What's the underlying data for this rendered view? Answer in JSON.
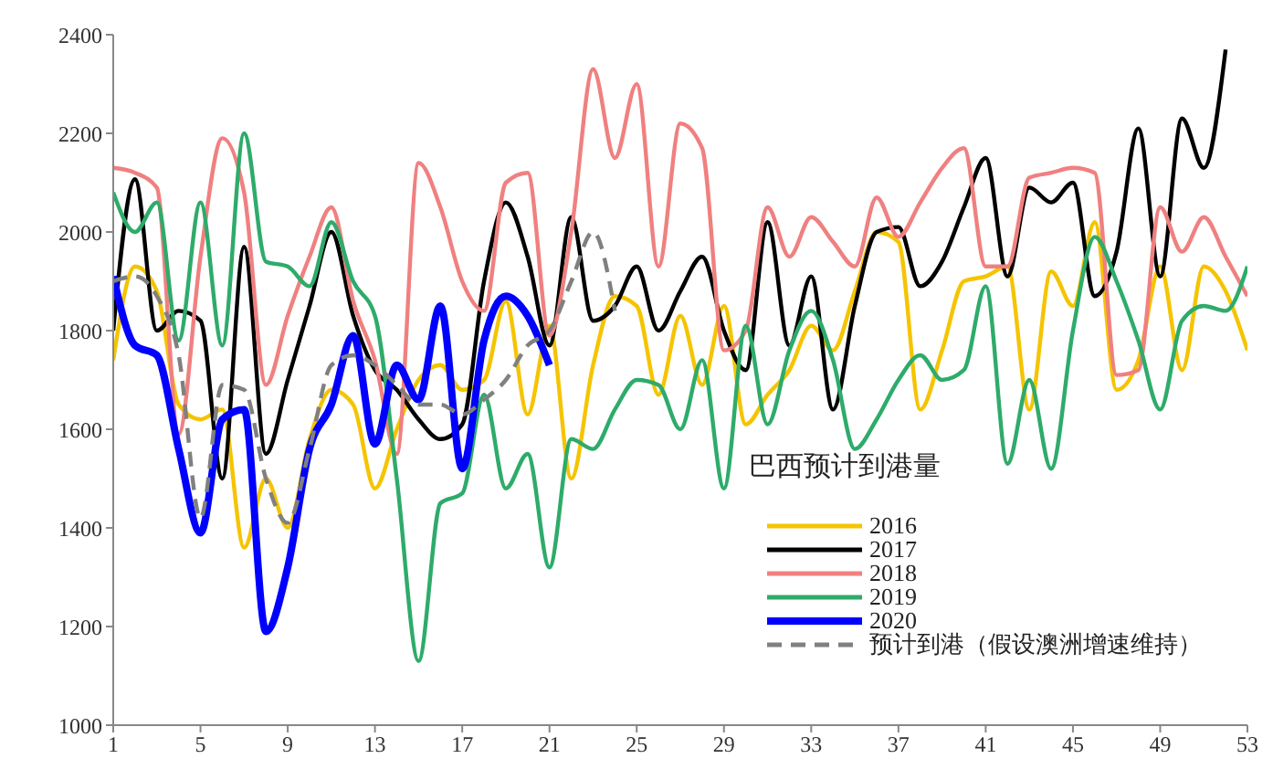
{
  "chart_data": {
    "type": "line",
    "legend_title": "巴西预计到港量",
    "x": [
      1,
      2,
      3,
      4,
      5,
      6,
      7,
      8,
      9,
      10,
      11,
      12,
      13,
      14,
      15,
      16,
      17,
      18,
      19,
      20,
      21,
      22,
      23,
      24,
      25,
      26,
      27,
      28,
      29,
      30,
      31,
      32,
      33,
      34,
      35,
      36,
      37,
      38,
      39,
      40,
      41,
      42,
      43,
      44,
      45,
      46,
      47,
      48,
      49,
      50,
      51,
      52,
      53
    ],
    "xlim": [
      1,
      53
    ],
    "xticks": [
      1,
      5,
      9,
      13,
      17,
      21,
      25,
      29,
      33,
      37,
      41,
      45,
      49,
      53
    ],
    "ylim": [
      1000,
      2400
    ],
    "yticks": [
      1000,
      1200,
      1400,
      1600,
      1800,
      2000,
      2200,
      2400
    ],
    "grid": false,
    "legend": "bottom right",
    "marker": "none",
    "line_style": "solid",
    "series": [
      {
        "name": "2016",
        "color": "#f5c400",
        "values": [
          1740,
          1930,
          1880,
          1650,
          1620,
          1640,
          1360,
          1500,
          1400,
          1580,
          1680,
          1650,
          1480,
          1600,
          1700,
          1730,
          1680,
          1700,
          1860,
          1630,
          1810,
          1500,
          1730,
          1870,
          1850,
          1670,
          1830,
          1690,
          1850,
          1610,
          1670,
          1720,
          1810,
          1760,
          1880,
          2000,
          1980,
          1640,
          1760,
          1900,
          1910,
          1930,
          1640,
          1920,
          1850,
          2020,
          1680,
          1740,
          1930,
          1720,
          1930,
          1880,
          1760
        ]
      },
      {
        "name": "2017",
        "color": "#000000",
        "values": [
          1800,
          2107,
          1800,
          1840,
          1820,
          1500,
          1970,
          1550,
          1700,
          1850,
          2000,
          1830,
          1720,
          1680,
          1620,
          1580,
          1610,
          1900,
          2060,
          1950,
          1770,
          2030,
          1820,
          1850,
          1930,
          1800,
          1880,
          1950,
          1800,
          1720,
          2020,
          1770,
          1910,
          1640,
          1850,
          2000,
          2010,
          1890,
          1940,
          2050,
          2150,
          1910,
          2090,
          2060,
          2100,
          1870,
          1960,
          2210,
          1910,
          2230,
          2130,
          2370,
          null
        ]
      },
      {
        "name": "2018",
        "color": "#f08080",
        "values": [
          2130,
          2120,
          2090,
          1590,
          1950,
          2190,
          2080,
          1690,
          1830,
          1950,
          2050,
          1860,
          1740,
          1550,
          2140,
          2050,
          1900,
          1840,
          2100,
          2120,
          1790,
          2000,
          2330,
          2150,
          2300,
          1930,
          2220,
          2170,
          1760,
          1800,
          2050,
          1950,
          2030,
          1980,
          1930,
          2070,
          1990,
          2060,
          2130,
          2170,
          1930,
          1930,
          2110,
          2120,
          2130,
          2120,
          1710,
          1720,
          2050,
          1960,
          2030,
          1950,
          1870
        ]
      },
      {
        "name": "2019",
        "color": "#2eab6a",
        "values": [
          2080,
          2000,
          2060,
          1780,
          2060,
          1770,
          2200,
          1940,
          1930,
          1890,
          2020,
          1900,
          1830,
          1500,
          1130,
          1450,
          1470,
          1670,
          1480,
          1550,
          1320,
          1580,
          1560,
          1640,
          1700,
          1690,
          1600,
          1740,
          1480,
          1810,
          1610,
          1760,
          1840,
          1740,
          1560,
          1620,
          1700,
          1750,
          1700,
          1720,
          1890,
          1530,
          1700,
          1520,
          1800,
          1990,
          1900,
          1780,
          1640,
          1820,
          1850,
          1840,
          1930
        ]
      },
      {
        "name": "2020",
        "color": "#0000ff",
        "values": [
          1910,
          1770,
          1750,
          1560,
          1390,
          1620,
          1640,
          1190,
          1320,
          1560,
          1650,
          1790,
          1570,
          1730,
          1660,
          1850,
          1520,
          1780,
          1870,
          1830,
          1730,
          null,
          null,
          null,
          null,
          null,
          null,
          null,
          null,
          null,
          null,
          null,
          null,
          null,
          null,
          null,
          null,
          null,
          null,
          null,
          null,
          null,
          null,
          null,
          null,
          null,
          null,
          null,
          null,
          null,
          null,
          null,
          null
        ]
      },
      {
        "name": "预计到港（假设澳洲增速维持）",
        "color": "#808080",
        "line_style": "dashed",
        "values": [
          1900,
          1910,
          1870,
          1750,
          1420,
          1690,
          1680,
          1500,
          1410,
          1560,
          1730,
          1750,
          1730,
          1690,
          1650,
          1650,
          1630,
          1660,
          1700,
          1770,
          1800,
          1900,
          2000,
          1840,
          null,
          null,
          null,
          null,
          null,
          null,
          null,
          null,
          null,
          null,
          null,
          null,
          null,
          null,
          null,
          null,
          null,
          null,
          null,
          null,
          null,
          null,
          null,
          null,
          null,
          null,
          null,
          null,
          null
        ]
      }
    ]
  }
}
